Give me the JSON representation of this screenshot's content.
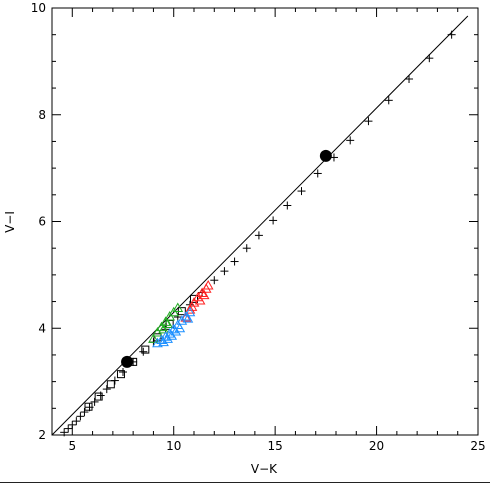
{
  "chart_data": {
    "type": "scatter",
    "xlabel": "V−K",
    "ylabel": "V−I",
    "xlim": [
      4,
      25
    ],
    "ylim": [
      2,
      10
    ],
    "x_ticks": [
      5,
      10,
      15,
      20,
      25
    ],
    "y_ticks": [
      2,
      4,
      6,
      8,
      10
    ],
    "grid": false,
    "line": {
      "name": "",
      "x": [
        4.0,
        24.5
      ],
      "y": [
        2.0,
        9.85
      ]
    },
    "series": [
      {
        "marker": "plus",
        "color": "#000000",
        "x": [
          4.6,
          4.8,
          5.0,
          5.2,
          5.4,
          5.6,
          5.85,
          6.1,
          6.4,
          6.7,
          7.1,
          7.5,
          8.0,
          8.5,
          9.0,
          9.6,
          10.2,
          10.8,
          11.4,
          12.0,
          12.5,
          13.0,
          13.6,
          14.2,
          14.9,
          15.6,
          16.3,
          17.1,
          17.9,
          18.7,
          19.6,
          20.6,
          21.6,
          22.6,
          23.7
        ],
        "y": [
          2.05,
          2.12,
          2.19,
          2.26,
          2.35,
          2.43,
          2.52,
          2.62,
          2.74,
          2.86,
          3.02,
          3.18,
          3.37,
          3.56,
          3.74,
          3.98,
          4.21,
          4.44,
          4.67,
          4.9,
          5.07,
          5.25,
          5.5,
          5.74,
          6.02,
          6.3,
          6.57,
          6.9,
          7.2,
          7.52,
          7.88,
          8.27,
          8.67,
          9.06,
          9.5
        ]
      },
      {
        "marker": "filled-circle",
        "color": "#000000",
        "x": [
          7.7,
          17.5
        ],
        "y": [
          3.37,
          7.23
        ]
      },
      {
        "marker": "square",
        "color": "#000000",
        "x": [
          5.8,
          6.3,
          6.9,
          7.4,
          8.0,
          8.6,
          9.2,
          9.8,
          10.4,
          11.0
        ],
        "y": [
          2.53,
          2.72,
          2.95,
          3.14,
          3.37,
          3.6,
          3.83,
          4.08,
          4.32,
          4.55
        ]
      },
      {
        "marker": "triangle",
        "color": "#22aa22",
        "x": [
          9.0,
          9.2,
          9.4,
          9.6,
          9.8,
          10.0,
          10.2,
          9.5,
          9.7
        ],
        "y": [
          3.8,
          3.92,
          4.02,
          4.12,
          4.22,
          4.3,
          4.38,
          3.98,
          4.08
        ]
      },
      {
        "marker": "triangle",
        "color": "#ff2020",
        "x": [
          10.6,
          10.8,
          11.0,
          11.2,
          11.4,
          11.6,
          11.7,
          10.9,
          11.3,
          11.5
        ],
        "y": [
          4.2,
          4.35,
          4.48,
          4.58,
          4.66,
          4.74,
          4.8,
          4.4,
          4.52,
          4.62
        ]
      },
      {
        "marker": "triangle",
        "color": "#1e90ff",
        "x": [
          9.2,
          9.4,
          9.6,
          9.8,
          10.0,
          10.2,
          10.4,
          10.6,
          10.8,
          9.5,
          9.9,
          10.3,
          10.7,
          9.7,
          10.1
        ],
        "y": [
          3.72,
          3.78,
          3.84,
          3.9,
          3.98,
          4.06,
          4.14,
          4.22,
          4.3,
          3.74,
          3.86,
          4.0,
          4.18,
          3.8,
          3.94
        ]
      }
    ]
  }
}
